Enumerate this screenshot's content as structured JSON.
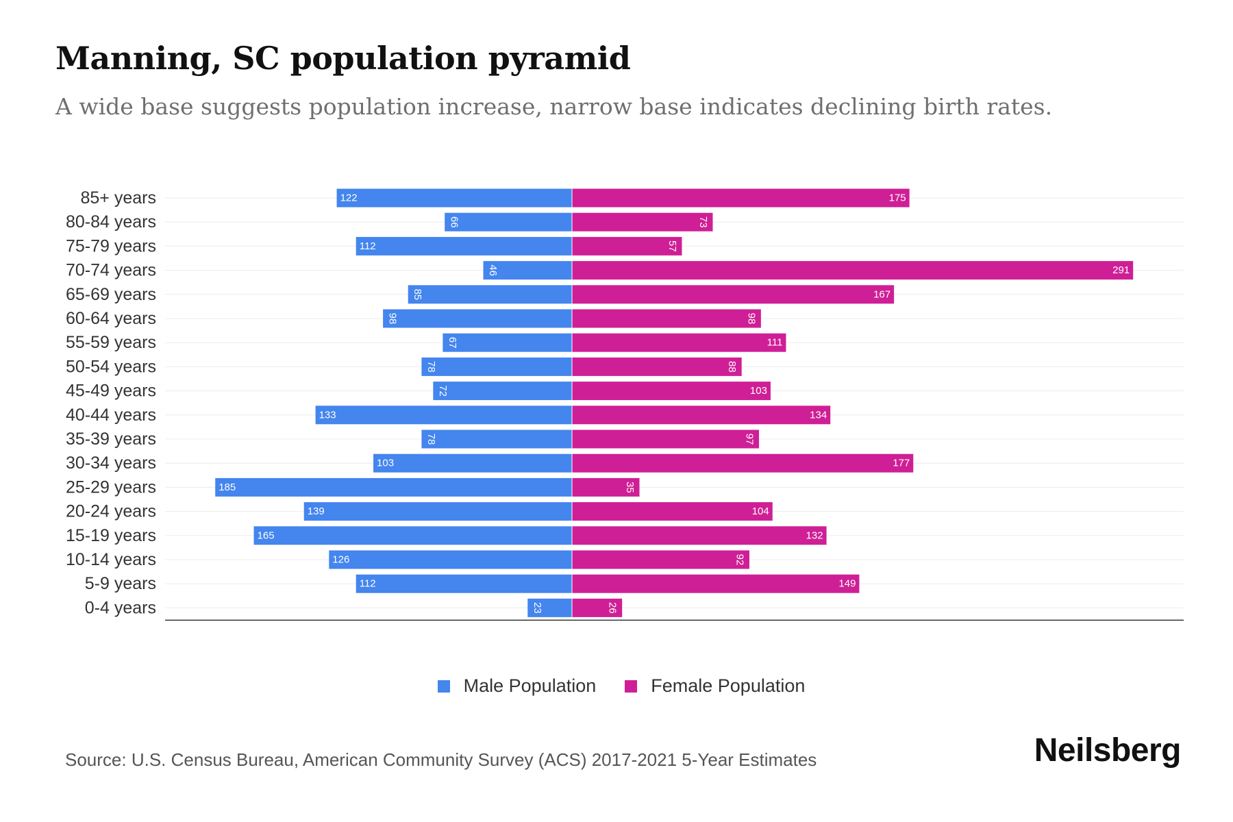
{
  "title": "Manning, SC population pyramid",
  "subtitle": "A wide base suggests population increase, narrow base indicates declining birth rates.",
  "colors": {
    "male": "#4485ee",
    "female": "#cf1f96"
  },
  "chart_data": {
    "type": "bar",
    "orientation": "horizontal-pyramid",
    "categories": [
      "85+ years",
      "80-84 years",
      "75-79 years",
      "70-74 years",
      "65-69 years",
      "60-64 years",
      "55-59 years",
      "50-54 years",
      "45-49 years",
      "40-44 years",
      "35-39 years",
      "30-34 years",
      "25-29 years",
      "20-24 years",
      "15-19 years",
      "10-14 years",
      "5-9 years",
      "0-4 years"
    ],
    "series": [
      {
        "name": "Male Population",
        "values": [
          122,
          66,
          112,
          46,
          85,
          98,
          67,
          78,
          72,
          133,
          78,
          103,
          185,
          139,
          165,
          126,
          112,
          23
        ]
      },
      {
        "name": "Female Population",
        "values": [
          175,
          73,
          57,
          291,
          167,
          98,
          111,
          88,
          103,
          134,
          97,
          177,
          35,
          104,
          132,
          92,
          149,
          26
        ]
      }
    ],
    "grid": true,
    "legend": "bottom-center"
  },
  "legend": {
    "male_label": "Male Population",
    "female_label": "Female Population"
  },
  "source": "Source: U.S. Census Bureau, American Community Survey (ACS) 2017-2021 5-Year Estimates",
  "brand": "Neilsberg"
}
